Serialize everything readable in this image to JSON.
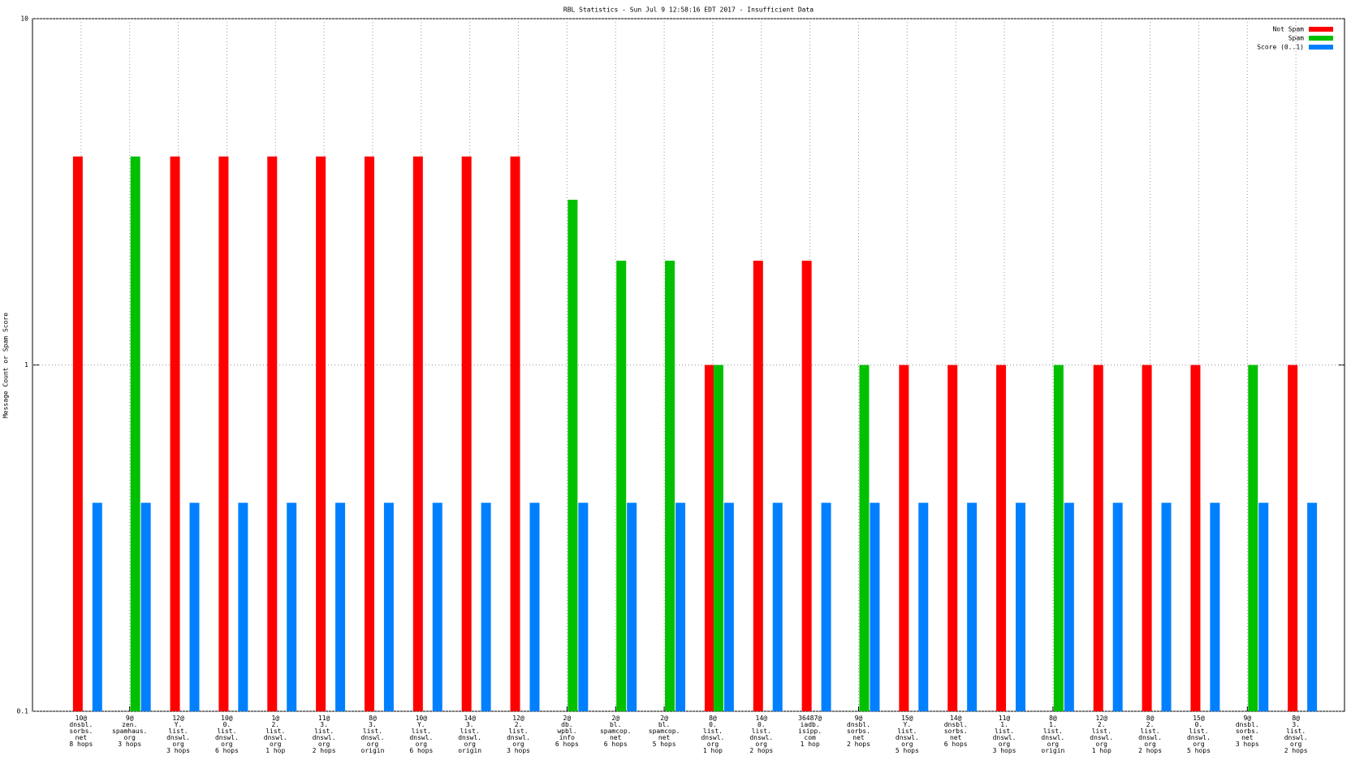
{
  "chart_data": {
    "type": "bar",
    "title": "RBL Statistics - Sun Jul  9 12:58:16 EDT 2017 - Insufficient Data",
    "y_label": "Message Count or Spam Score",
    "yscale": "log",
    "grid": true,
    "legend": "upper right",
    "categories": [
      [
        "10@",
        "dnsbl.",
        "sorbs.",
        "net",
        "8 hops"
      ],
      [
        "9@",
        "zen.",
        "spamhaus.",
        "org",
        "3 hops"
      ],
      [
        "12@",
        "Y.",
        "list.",
        "dnswl.",
        "org",
        "3 hops"
      ],
      [
        "10@",
        "0.",
        "list.",
        "dnswl.",
        "org",
        "6 hops"
      ],
      [
        "1@",
        "2.",
        "list.",
        "dnswl.",
        "org",
        "1 hop"
      ],
      [
        "11@",
        "3.",
        "list.",
        "dnswl.",
        "org",
        "2 hops"
      ],
      [
        "8@",
        "3.",
        "list.",
        "dnswl.",
        "org",
        "origin"
      ],
      [
        "10@",
        "Y.",
        "list.",
        "dnswl.",
        "org",
        "6 hops"
      ],
      [
        "14@",
        "3.",
        "list.",
        "dnswl.",
        "org",
        "origin"
      ],
      [
        "12@",
        "2.",
        "list.",
        "dnswl.",
        "org",
        "3 hops"
      ],
      [
        "2@",
        "db.",
        "wpbl.",
        "info",
        "6 hops"
      ],
      [
        "2@",
        "bl.",
        "spamcop.",
        "net",
        "6 hops"
      ],
      [
        "2@",
        "bl.",
        "spamcop.",
        "net",
        "5 hops"
      ],
      [
        "8@",
        "0.",
        "list.",
        "dnswl.",
        "org",
        "1 hop"
      ],
      [
        "14@",
        "0.",
        "list.",
        "dnswl.",
        "org",
        "2 hops"
      ],
      [
        "36487@",
        "iadb.",
        "isipp.",
        "com",
        "1 hop"
      ],
      [
        "9@",
        "dnsbl.",
        "sorbs.",
        "net",
        "2 hops"
      ],
      [
        "15@",
        "Y.",
        "list.",
        "dnswl.",
        "org",
        "5 hops"
      ],
      [
        "14@",
        "dnsbl.",
        "sorbs.",
        "net",
        "6 hops"
      ],
      [
        "11@",
        "1.",
        "list.",
        "dnswl.",
        "org",
        "3 hops"
      ],
      [
        "8@",
        "1.",
        "list.",
        "dnswl.",
        "org",
        "origin"
      ],
      [
        "12@",
        "2.",
        "list.",
        "dnswl.",
        "org",
        "1 hop"
      ],
      [
        "8@",
        "2.",
        "list.",
        "dnswl.",
        "org",
        "2 hops"
      ],
      [
        "15@",
        "0.",
        "list.",
        "dnswl.",
        "org",
        "5 hops"
      ],
      [
        "9@",
        "dnsbl.",
        "sorbs.",
        "net",
        "3 hops"
      ],
      [
        "8@",
        "3.",
        "list.",
        "dnswl.",
        "org",
        "2 hops"
      ]
    ],
    "series": [
      {
        "name": "Not Spam",
        "color": "#ff0000",
        "values": [
          4,
          null,
          4,
          4,
          4,
          4,
          4,
          4,
          4,
          4,
          null,
          null,
          null,
          1,
          2,
          2,
          null,
          1,
          1,
          1,
          null,
          1,
          1,
          1,
          null,
          1
        ]
      },
      {
        "name": "Spam",
        "color": "#00c000",
        "values": [
          null,
          4,
          null,
          null,
          null,
          null,
          null,
          null,
          null,
          null,
          3,
          2,
          2,
          1,
          null,
          null,
          1,
          null,
          null,
          null,
          1,
          null,
          null,
          null,
          1,
          null
        ]
      },
      {
        "name": "Score (0..1)",
        "color": "#0080ff",
        "values": [
          0.4,
          0.4,
          0.4,
          0.4,
          0.4,
          0.4,
          0.4,
          0.4,
          0.4,
          0.4,
          0.4,
          0.4,
          0.4,
          0.4,
          0.4,
          0.4,
          0.4,
          0.4,
          0.4,
          0.4,
          0.4,
          0.4,
          0.4,
          0.4,
          0.4,
          0.4
        ]
      }
    ],
    "ylim": [
      0.1,
      10
    ],
    "yticks": [
      0.1,
      1,
      10
    ]
  }
}
